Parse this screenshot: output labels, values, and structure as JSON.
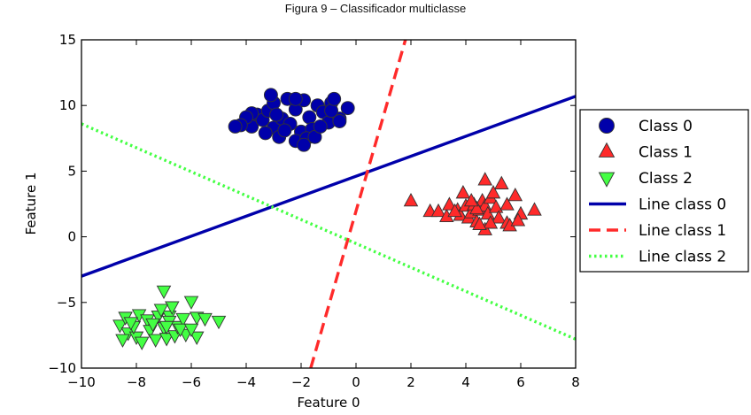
{
  "caption": "Figura 9 – Classificador multiclasse",
  "chart_data": {
    "type": "scatter",
    "title": "",
    "xlabel": "Feature 0",
    "ylabel": "Feature 1",
    "xlim": [
      -10,
      8
    ],
    "ylim": [
      -10,
      15
    ],
    "xticks": [
      -10,
      -8,
      -6,
      -4,
      -2,
      0,
      2,
      4,
      6,
      8
    ],
    "xtick_labels": [
      "−10",
      "−8",
      "−6",
      "−4",
      "−2",
      "0",
      "2",
      "4",
      "6",
      "8"
    ],
    "yticks": [
      -10,
      -5,
      0,
      5,
      10,
      15
    ],
    "ytick_labels": [
      "−10",
      "−5",
      "0",
      "5",
      "10",
      "15"
    ],
    "grid": false,
    "legend_position": "right (outside)",
    "series": [
      {
        "name": "Class 0",
        "kind": "points",
        "marker": "circle",
        "color": "#0000aa",
        "points": [
          [
            -3.8,
            8.4
          ],
          [
            -3.6,
            9.3
          ],
          [
            -3.4,
            8.9
          ],
          [
            -3.2,
            9.6
          ],
          [
            -3.0,
            10.2
          ],
          [
            -3.0,
            8.3
          ],
          [
            -2.7,
            9.0
          ],
          [
            -2.5,
            10.5
          ],
          [
            -2.4,
            8.6
          ],
          [
            -2.2,
            9.7
          ],
          [
            -2.0,
            8.0
          ],
          [
            -1.9,
            10.4
          ],
          [
            -1.7,
            9.1
          ],
          [
            -1.6,
            8.2
          ],
          [
            -1.4,
            10.0
          ],
          [
            -1.2,
            9.5
          ],
          [
            -1.0,
            8.7
          ],
          [
            -0.9,
            10.2
          ],
          [
            -0.6,
            9.0
          ],
          [
            -0.9,
            9.6
          ],
          [
            -3.3,
            7.9
          ],
          [
            -2.8,
            7.6
          ],
          [
            -2.2,
            7.3
          ],
          [
            -1.8,
            7.5
          ],
          [
            -1.5,
            7.6
          ],
          [
            -3.8,
            9.4
          ],
          [
            -4.0,
            9.1
          ],
          [
            -4.2,
            8.5
          ],
          [
            -4.4,
            8.4
          ],
          [
            -2.6,
            8.1
          ],
          [
            -1.9,
            7.0
          ],
          [
            -0.8,
            10.5
          ],
          [
            -0.3,
            9.8
          ],
          [
            -3.1,
            10.8
          ],
          [
            -2.2,
            10.5
          ],
          [
            -1.3,
            8.4
          ],
          [
            -0.6,
            8.8
          ],
          [
            -2.9,
            9.3
          ]
        ]
      },
      {
        "name": "Class 1",
        "kind": "points",
        "marker": "triangle-up",
        "color": "#ff2a2a",
        "points": [
          [
            2.0,
            2.7
          ],
          [
            2.7,
            1.9
          ],
          [
            3.0,
            1.9
          ],
          [
            3.3,
            1.5
          ],
          [
            3.4,
            2.4
          ],
          [
            3.7,
            2.0
          ],
          [
            3.8,
            1.6
          ],
          [
            3.9,
            3.3
          ],
          [
            4.0,
            2.3
          ],
          [
            4.1,
            1.4
          ],
          [
            4.2,
            1.8
          ],
          [
            4.3,
            2.4
          ],
          [
            4.4,
            1.1
          ],
          [
            4.5,
            2.0
          ],
          [
            4.6,
            2.7
          ],
          [
            4.7,
            4.3
          ],
          [
            4.7,
            2.3
          ],
          [
            4.7,
            0.5
          ],
          [
            4.8,
            1.7
          ],
          [
            4.9,
            2.9
          ],
          [
            5.0,
            3.3
          ],
          [
            5.1,
            2.2
          ],
          [
            5.2,
            1.4
          ],
          [
            5.3,
            4.0
          ],
          [
            5.5,
            2.4
          ],
          [
            5.5,
            1.0
          ],
          [
            5.6,
            0.8
          ],
          [
            5.8,
            3.1
          ],
          [
            6.0,
            1.7
          ],
          [
            6.5,
            2.0
          ],
          [
            4.9,
            1.0
          ],
          [
            4.4,
            2.1
          ],
          [
            3.6,
            1.9
          ],
          [
            5.9,
            1.2
          ],
          [
            4.2,
            2.7
          ],
          [
            4.5,
            0.9
          ]
        ]
      },
      {
        "name": "Class 2",
        "kind": "points",
        "marker": "triangle-down",
        "color": "#44ff44",
        "points": [
          [
            -8.6,
            -6.7
          ],
          [
            -8.4,
            -6.1
          ],
          [
            -8.3,
            -7.3
          ],
          [
            -8.0,
            -7.6
          ],
          [
            -8.1,
            -6.8
          ],
          [
            -7.9,
            -5.9
          ],
          [
            -7.8,
            -8.0
          ],
          [
            -7.6,
            -6.3
          ],
          [
            -7.5,
            -7.1
          ],
          [
            -7.3,
            -7.8
          ],
          [
            -7.2,
            -6.0
          ],
          [
            -7.0,
            -4.1
          ],
          [
            -7.0,
            -6.9
          ],
          [
            -6.9,
            -7.7
          ],
          [
            -6.8,
            -6.0
          ],
          [
            -6.7,
            -5.3
          ],
          [
            -6.6,
            -7.5
          ],
          [
            -6.5,
            -6.8
          ],
          [
            -6.3,
            -6.2
          ],
          [
            -6.2,
            -7.4
          ],
          [
            -6.0,
            -4.9
          ],
          [
            -5.8,
            -6.1
          ],
          [
            -5.8,
            -7.6
          ],
          [
            -5.0,
            -6.4
          ],
          [
            -8.5,
            -7.8
          ],
          [
            -7.4,
            -6.6
          ],
          [
            -6.8,
            -6.4
          ],
          [
            -6.4,
            -7.0
          ],
          [
            -7.1,
            -5.5
          ],
          [
            -8.2,
            -6.5
          ],
          [
            -6.9,
            -6.8
          ],
          [
            -6.0,
            -7.0
          ],
          [
            -5.5,
            -6.2
          ]
        ]
      },
      {
        "name": "Line class 0",
        "kind": "line",
        "dash": "solid",
        "color": "#0000aa",
        "points": [
          [
            -10,
            -3.0
          ],
          [
            8,
            10.7
          ]
        ]
      },
      {
        "name": "Line class 1",
        "kind": "line",
        "dash": "dashed",
        "color": "#ff2a2a",
        "points": [
          [
            -1.65,
            -10
          ],
          [
            1.8,
            15
          ]
        ]
      },
      {
        "name": "Line class 2",
        "kind": "line",
        "dash": "dotted",
        "color": "#44ff44",
        "points": [
          [
            -10,
            8.6
          ],
          [
            8,
            -7.8
          ]
        ]
      }
    ]
  }
}
